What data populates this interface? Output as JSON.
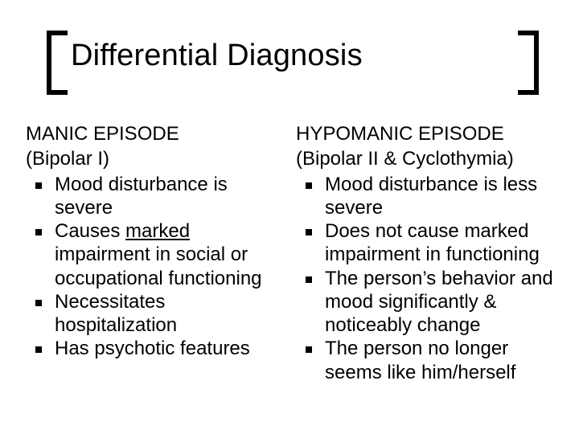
{
  "title": "Differential Diagnosis",
  "colors": {
    "background": "#ffffff",
    "text": "#000000",
    "bracket": "#000000",
    "bullet": "#000000"
  },
  "typography": {
    "title_fontsize": 38,
    "body_fontsize": 24,
    "font_family": "Arial"
  },
  "left": {
    "heading_line1": "MANIC EPISODE",
    "heading_line2": "(Bipolar I)",
    "items": [
      "Mood disturbance is severe",
      "Causes marked impairment in social or occupational functioning",
      "Necessitates hospitalization",
      "Has psychotic features"
    ],
    "underlined_word_item_index": 1,
    "underlined_word": "marked"
  },
  "right": {
    "heading_line1": "HYPOMANIC EPISODE",
    "heading_line2": "(Bipolar II & Cyclothymia)",
    "items": [
      "Mood disturbance is less severe",
      "Does not cause marked impairment in functioning",
      "The person’s behavior and mood significantly & noticeably change",
      "The person no longer seems like him/herself"
    ]
  }
}
